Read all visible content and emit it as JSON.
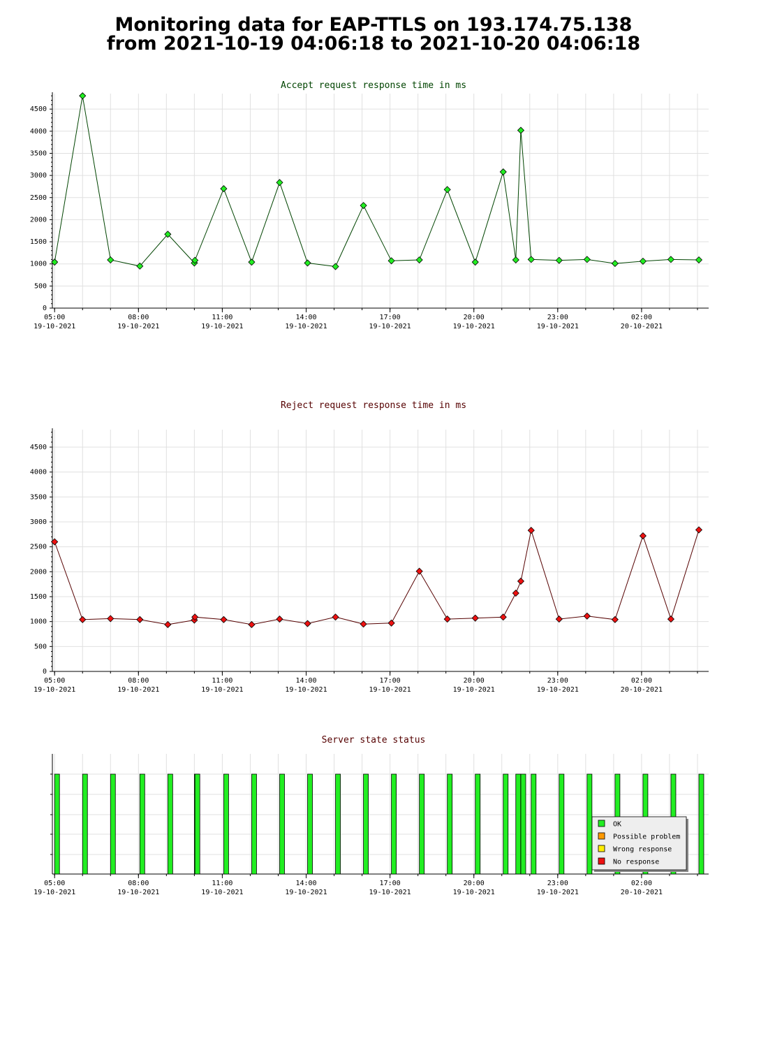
{
  "title": {
    "line1": "Monitoring data for EAP-TTLS on 193.174.75.138",
    "line2": "from 2021-10-19 04:06:18 to 2021-10-20 04:06:18"
  },
  "colors": {
    "accept_line": "#004400",
    "accept_marker": "#22ee22",
    "reject_line": "#550000",
    "reject_marker": "#ee1111",
    "ok": "#22ee22",
    "possible_problem": "#ff9900",
    "wrong_response": "#ffee00",
    "no_response": "#ee1111"
  },
  "x_ticks": [
    {
      "time": "05:00",
      "date": "19-10-2021",
      "h": 5
    },
    {
      "time": "08:00",
      "date": "19-10-2021",
      "h": 8
    },
    {
      "time": "11:00",
      "date": "19-10-2021",
      "h": 11
    },
    {
      "time": "14:00",
      "date": "19-10-2021",
      "h": 14
    },
    {
      "time": "17:00",
      "date": "19-10-2021",
      "h": 17
    },
    {
      "time": "20:00",
      "date": "19-10-2021",
      "h": 20
    },
    {
      "time": "23:00",
      "date": "19-10-2021",
      "h": 23
    },
    {
      "time": "02:00",
      "date": "20-10-2021",
      "h": 26
    }
  ],
  "chart_data": [
    {
      "type": "line",
      "title": "Accept request response time in ms",
      "xlabel": "",
      "ylabel": "",
      "x_unit": "hours since 2021-10-19 00:00",
      "xlim": [
        4.92,
        28.4
      ],
      "ylim": [
        0,
        4850
      ],
      "yticks": [
        0,
        500,
        1000,
        1500,
        2000,
        2500,
        3000,
        3500,
        4000,
        4500
      ],
      "grid": true,
      "x": [
        5.0,
        6.0,
        7.0,
        8.05,
        9.05,
        10.0,
        10.02,
        11.05,
        12.05,
        13.05,
        14.05,
        15.05,
        16.05,
        17.05,
        18.05,
        19.05,
        20.05,
        21.05,
        21.5,
        21.68,
        22.05,
        23.05,
        24.05,
        25.05,
        26.05,
        27.05,
        28.05
      ],
      "values": [
        1040,
        4800,
        1090,
        950,
        1670,
        1020,
        1080,
        2700,
        1040,
        2840,
        1020,
        940,
        2320,
        1070,
        1090,
        2680,
        1040,
        3080,
        1090,
        4020,
        1100,
        1080,
        1100,
        1010,
        1060,
        1100,
        1090
      ]
    },
    {
      "type": "line",
      "title": "Reject request response time in ms",
      "xlabel": "",
      "ylabel": "",
      "x_unit": "hours since 2021-10-19 00:00",
      "xlim": [
        4.92,
        28.4
      ],
      "ylim": [
        0,
        4850
      ],
      "yticks": [
        0,
        500,
        1000,
        1500,
        2000,
        2500,
        3000,
        3500,
        4000,
        4500
      ],
      "grid": true,
      "x": [
        5.0,
        6.0,
        7.0,
        8.05,
        9.05,
        10.0,
        10.02,
        11.05,
        12.05,
        13.05,
        14.05,
        15.05,
        16.05,
        17.05,
        18.05,
        19.05,
        20.05,
        21.05,
        21.5,
        21.68,
        22.05,
        23.05,
        24.05,
        25.05,
        26.05,
        27.05,
        28.05
      ],
      "values": [
        2600,
        1040,
        1060,
        1040,
        940,
        1030,
        1090,
        1040,
        940,
        1050,
        960,
        1090,
        950,
        970,
        2010,
        1050,
        1070,
        1090,
        1570,
        1810,
        2830,
        1050,
        1110,
        1040,
        2720,
        1050,
        2840
      ]
    },
    {
      "type": "bar",
      "title": "Server state status",
      "xlabel": "",
      "ylabel": "",
      "x_unit": "hours since 2021-10-19 00:00",
      "xlim": [
        4.92,
        28.4
      ],
      "x": [
        5.0,
        6.0,
        7.0,
        8.05,
        9.05,
        10.0,
        10.02,
        11.05,
        12.05,
        13.05,
        14.05,
        15.05,
        16.05,
        17.05,
        18.05,
        19.05,
        20.05,
        21.05,
        21.5,
        21.68,
        22.05,
        23.05,
        24.05,
        25.05,
        26.05,
        27.05,
        28.05
      ],
      "values": [
        "OK",
        "OK",
        "OK",
        "OK",
        "OK",
        "OK",
        "OK",
        "OK",
        "OK",
        "OK",
        "OK",
        "OK",
        "OK",
        "OK",
        "OK",
        "OK",
        "OK",
        "OK",
        "OK",
        "OK",
        "OK",
        "OK",
        "OK",
        "OK",
        "OK",
        "OK",
        "OK"
      ],
      "legend": [
        "OK",
        "Possible problem",
        "Wrong response",
        "No response"
      ],
      "legend_position": "bottom-right"
    }
  ]
}
